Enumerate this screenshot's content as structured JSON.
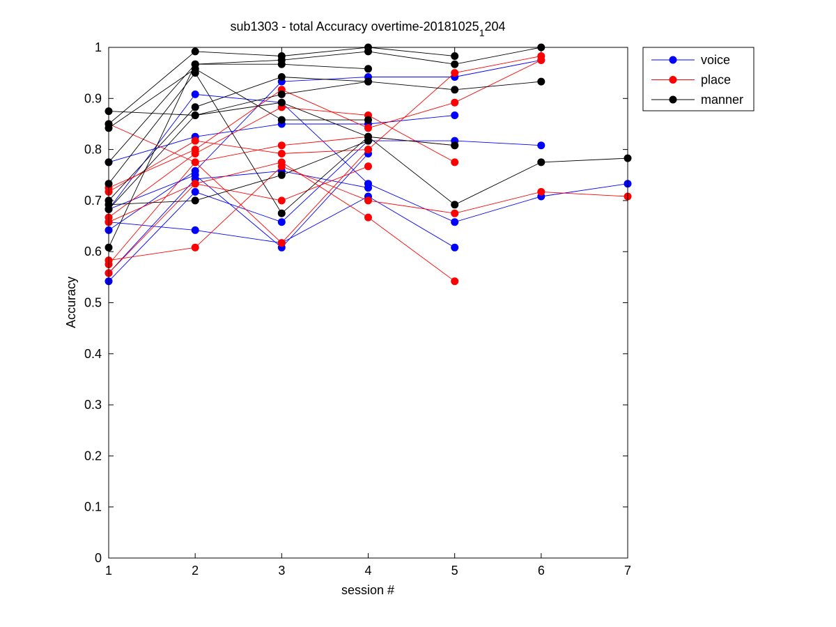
{
  "chart_data": {
    "type": "line",
    "title": "sub1303 - total Accuracy overtime-20181025",
    "title_subscript": "1",
    "title_tail": "204",
    "xlabel": "session #",
    "ylabel": "Accuracy",
    "xlim": [
      1,
      7
    ],
    "ylim": [
      0,
      1
    ],
    "xticks": [
      1,
      2,
      3,
      4,
      5,
      6,
      7
    ],
    "yticks": [
      0,
      0.1,
      0.2,
      0.3,
      0.4,
      0.5,
      0.6,
      0.7,
      0.8,
      0.9,
      1
    ],
    "grid": false,
    "legend_position": "top-right outside",
    "legend": [
      "voice",
      "place",
      "manner"
    ],
    "groups": [
      {
        "name": "voice",
        "color": "#0000ff",
        "lines": [
          [
            [
              1,
              0.775
            ],
            [
              2,
              0.825
            ],
            [
              3,
              0.85
            ],
            [
              4,
              0.85
            ],
            [
              5,
              0.867
            ]
          ],
          [
            [
              1,
              0.683
            ],
            [
              2,
              0.908
            ],
            [
              3,
              0.892
            ],
            [
              4,
              0.733
            ],
            [
              5,
              0.658
            ],
            [
              6,
              0.708
            ],
            [
              7,
              0.733
            ]
          ],
          [
            [
              1,
              0.658
            ],
            [
              2,
              0.642
            ],
            [
              3,
              0.617
            ],
            [
              4,
              0.708
            ],
            [
              5,
              0.608
            ]
          ],
          [
            [
              1,
              0.642
            ],
            [
              2,
              0.758
            ],
            [
              3,
              0.933
            ],
            [
              4,
              0.942
            ],
            [
              5,
              0.942
            ],
            [
              6,
              0.975
            ]
          ],
          [
            [
              1,
              0.542
            ],
            [
              2,
              0.717
            ],
            [
              3,
              0.658
            ],
            [
              4,
              0.817
            ],
            [
              5,
              0.817
            ],
            [
              6,
              0.808
            ]
          ],
          [
            [
              1,
              0.683
            ],
            [
              2,
              0.75
            ],
            [
              3,
              0.608
            ],
            [
              4,
              0.792
            ]
          ],
          [
            [
              1,
              0.558
            ],
            [
              2,
              0.742
            ],
            [
              3,
              0.758
            ],
            [
              4,
              0.725
            ]
          ]
        ]
      },
      {
        "name": "place",
        "color": "#ff0000",
        "lines": [
          [
            [
              1,
              0.85
            ],
            [
              2,
              0.775
            ],
            [
              3,
              0.808
            ],
            [
              4,
              0.825
            ],
            [
              5,
              0.808
            ]
          ],
          [
            [
              1,
              0.725
            ],
            [
              2,
              0.8
            ],
            [
              3,
              0.917
            ],
            [
              4,
              0.842
            ],
            [
              5,
              0.892
            ],
            [
              6,
              0.975
            ]
          ],
          [
            [
              1,
              0.717
            ],
            [
              2,
              0.817
            ],
            [
              3,
              0.792
            ],
            [
              4,
              0.8
            ],
            [
              5,
              0.95
            ],
            [
              6,
              0.983
            ]
          ],
          [
            [
              1,
              0.667
            ],
            [
              2,
              0.792
            ],
            [
              3,
              0.883
            ],
            [
              4,
              0.867
            ],
            [
              5,
              0.775
            ]
          ],
          [
            [
              1,
              0.658
            ],
            [
              2,
              0.733
            ],
            [
              3,
              0.7
            ],
            [
              4,
              0.767
            ]
          ],
          [
            [
              1,
              0.583
            ],
            [
              2,
              0.608
            ],
            [
              3,
              0.767
            ],
            [
              4,
              0.7
            ],
            [
              5,
              0.675
            ],
            [
              6,
              0.717
            ],
            [
              7,
              0.708
            ]
          ],
          [
            [
              1,
              0.575
            ],
            [
              2,
              0.775
            ],
            [
              3,
              0.617
            ],
            [
              4,
              0.8
            ]
          ],
          [
            [
              1,
              0.558
            ],
            [
              2,
              0.733
            ],
            [
              3,
              0.775
            ],
            [
              4,
              0.667
            ],
            [
              5,
              0.542
            ]
          ]
        ]
      },
      {
        "name": "manner",
        "color": "#000000",
        "lines": [
          [
            [
              1,
              0.875
            ],
            [
              2,
              0.867
            ],
            [
              3,
              0.892
            ],
            [
              4,
              0.825
            ],
            [
              5,
              0.808
            ]
          ],
          [
            [
              1,
              0.85
            ],
            [
              2,
              0.992
            ],
            [
              3,
              0.983
            ],
            [
              4,
              1.0
            ],
            [
              5,
              0.983
            ]
          ],
          [
            [
              1,
              0.842
            ],
            [
              2,
              0.958
            ],
            [
              3,
              0.858
            ],
            [
              4,
              0.858
            ]
          ],
          [
            [
              1,
              0.775
            ],
            [
              2,
              0.967
            ],
            [
              3,
              0.975
            ],
            [
              4,
              0.992
            ],
            [
              5,
              0.967
            ],
            [
              6,
              1.0
            ]
          ],
          [
            [
              1,
              0.733
            ],
            [
              2,
              0.95
            ],
            [
              3,
              0.675
            ],
            [
              4,
              0.825
            ],
            [
              5,
              0.692
            ],
            [
              6,
              0.775
            ],
            [
              7,
              0.783
            ]
          ],
          [
            [
              1,
              0.7
            ],
            [
              2,
              0.883
            ],
            [
              3,
              0.942
            ],
            [
              4,
              0.933
            ],
            [
              5,
              0.917
            ],
            [
              6,
              0.933
            ]
          ],
          [
            [
              1,
              0.692
            ],
            [
              2,
              0.7
            ],
            [
              3,
              0.75
            ],
            [
              4,
              0.817
            ]
          ],
          [
            [
              1,
              0.608
            ],
            [
              2,
              0.967
            ],
            [
              3,
              0.967
            ],
            [
              4,
              0.958
            ]
          ],
          [
            [
              1,
              0.683
            ],
            [
              2,
              0.867
            ],
            [
              3,
              0.908
            ],
            [
              4,
              0.933
            ]
          ]
        ]
      }
    ]
  }
}
